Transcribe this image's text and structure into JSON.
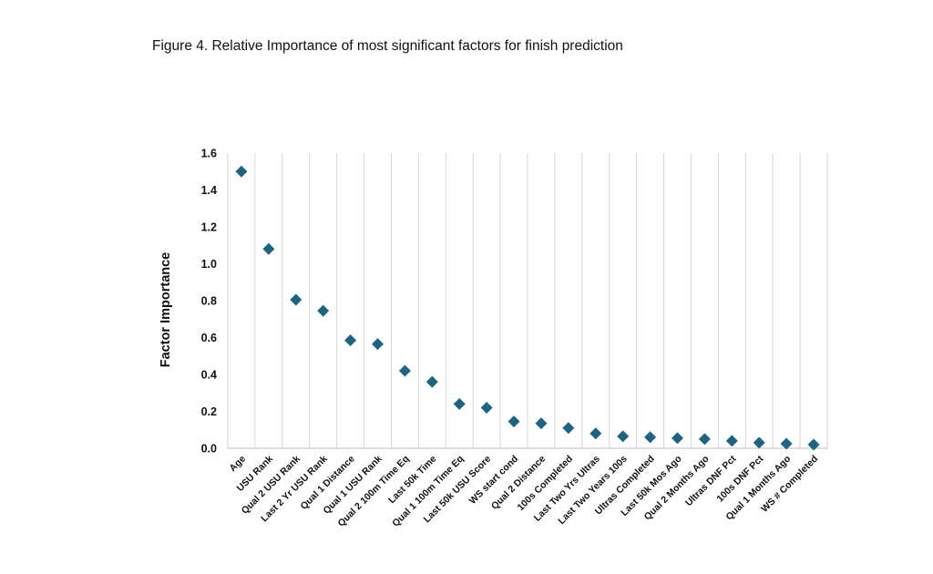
{
  "figure_caption": "Figure 4. Relative Importance of most significant factors for finish prediction",
  "chart_data": {
    "type": "scatter",
    "title": "",
    "xlabel": "",
    "ylabel": "Factor Importance",
    "ylim": [
      0,
      1.6
    ],
    "yticks": [
      "0.0",
      "0.2",
      "0.4",
      "0.6",
      "0.8",
      "1.0",
      "1.2",
      "1.4",
      "1.6"
    ],
    "grid": "vertical",
    "marker": "diamond",
    "marker_color": "#1f6383",
    "categories": [
      "Age",
      "USU Rank",
      "Qual 2 USU Rank",
      "Last 2 Yr USU Rank",
      "Qual 1 Distance",
      "Qual 1 USU Rank",
      "Qual 2 100m Time Eq",
      "Last 50k Time",
      "Qual 1 100m Time Eq",
      "Last 50k USU Score",
      "WS start cond",
      "Qual 2 Distance",
      "100s Completed",
      "Last Two Yrs Ultras",
      "Last Two Years 100s",
      "Ultras Completed",
      "Last 50k Mos Ago",
      "Qual 2 Months Ago",
      "Ultras DNF Pct",
      "100s DNF Pct",
      "Qual 1 Months Ago",
      "WS # Completed"
    ],
    "values": [
      1.5,
      1.08,
      0.805,
      0.745,
      0.585,
      0.565,
      0.42,
      0.36,
      0.24,
      0.22,
      0.145,
      0.135,
      0.11,
      0.08,
      0.065,
      0.06,
      0.055,
      0.05,
      0.04,
      0.03,
      0.025,
      0.02
    ]
  }
}
